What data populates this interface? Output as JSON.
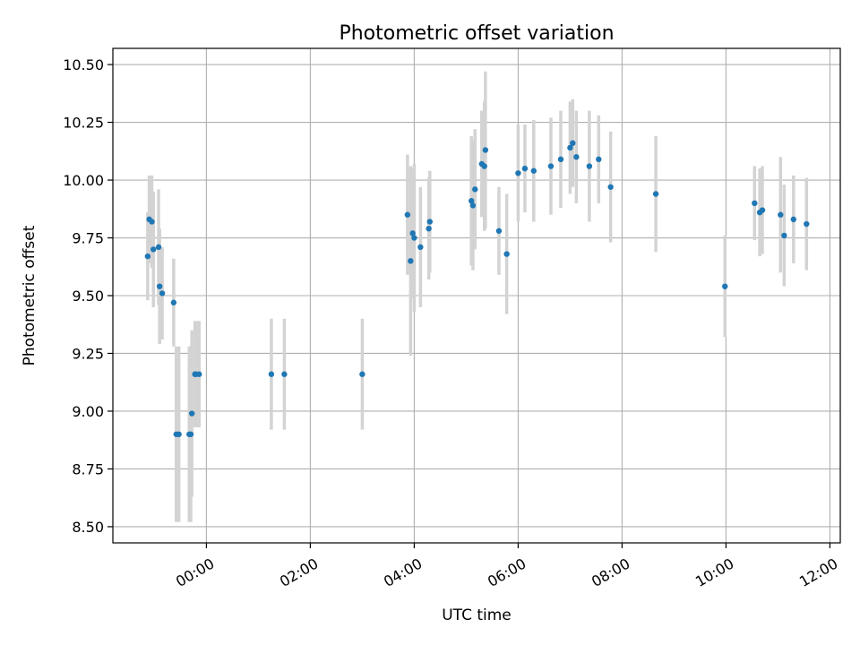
{
  "chart_data": {
    "type": "scatter",
    "title": "Photometric offset variation",
    "xlabel": "UTC time",
    "ylabel": "Photometric offset",
    "x_tick_labels": [
      "00:00",
      "02:00",
      "04:00",
      "06:00",
      "08:00",
      "10:00",
      "12:00"
    ],
    "x_tick_hours": [
      0,
      2,
      4,
      6,
      8,
      10,
      12
    ],
    "y_ticks": [
      8.5,
      8.75,
      9.0,
      9.25,
      9.5,
      9.75,
      10.0,
      10.25,
      10.5
    ],
    "y_tick_labels": [
      "8.50",
      "8.75",
      "9.00",
      "9.25",
      "9.50",
      "9.75",
      "10.00",
      "10.25",
      "10.50"
    ],
    "xlim_hours": [
      -1.8,
      12.2
    ],
    "ylim": [
      8.43,
      10.57
    ],
    "grid": true,
    "colors": {
      "points": "#1f77b4",
      "error_bars": "#d3d3d3",
      "grid": "#b0b0b0"
    },
    "series": [
      {
        "x_hours": [
          -1.13,
          -1.1,
          -1.05,
          -1.02,
          -0.92,
          -0.9,
          -0.85,
          -0.63,
          -0.58,
          -0.53,
          -0.33,
          -0.3,
          -0.28,
          -0.22,
          -0.2,
          -0.14,
          1.25,
          1.5,
          3.0,
          3.87,
          3.93,
          3.97,
          4.0,
          4.12,
          4.28,
          4.3,
          5.1,
          5.13,
          5.17,
          5.3,
          5.35,
          5.37,
          5.63,
          5.78,
          6.0,
          6.13,
          6.3,
          6.63,
          6.82,
          7.0,
          7.05,
          7.12,
          7.37,
          7.55,
          7.78,
          8.65,
          9.98,
          10.55,
          10.65,
          10.7,
          11.05,
          11.12,
          11.3,
          11.55
        ],
        "y": [
          9.67,
          9.83,
          9.82,
          9.7,
          9.71,
          9.54,
          9.51,
          9.47,
          8.9,
          8.9,
          8.9,
          8.9,
          8.99,
          9.16,
          9.16,
          9.16,
          9.16,
          9.16,
          9.16,
          9.85,
          9.65,
          9.77,
          9.75,
          9.71,
          9.79,
          9.82,
          9.91,
          9.89,
          9.96,
          10.07,
          10.06,
          10.13,
          9.78,
          9.68,
          10.03,
          10.05,
          10.04,
          10.06,
          10.09,
          10.14,
          10.16,
          10.1,
          10.06,
          10.09,
          9.97,
          9.94,
          9.54,
          9.9,
          9.86,
          9.87,
          9.85,
          9.76,
          9.83,
          9.81
        ],
        "err": [
          0.19,
          0.19,
          0.2,
          0.25,
          0.25,
          0.25,
          0.2,
          0.19,
          0.38,
          0.38,
          0.38,
          0.38,
          0.36,
          0.23,
          0.23,
          0.23,
          0.24,
          0.24,
          0.24,
          0.26,
          0.41,
          0.28,
          0.32,
          0.26,
          0.22,
          0.22,
          0.28,
          0.28,
          0.26,
          0.23,
          0.28,
          0.34,
          0.19,
          0.26,
          0.21,
          0.19,
          0.22,
          0.21,
          0.21,
          0.2,
          0.19,
          0.2,
          0.24,
          0.19,
          0.24,
          0.25,
          0.22,
          0.16,
          0.19,
          0.19,
          0.25,
          0.22,
          0.19,
          0.2
        ]
      }
    ]
  }
}
